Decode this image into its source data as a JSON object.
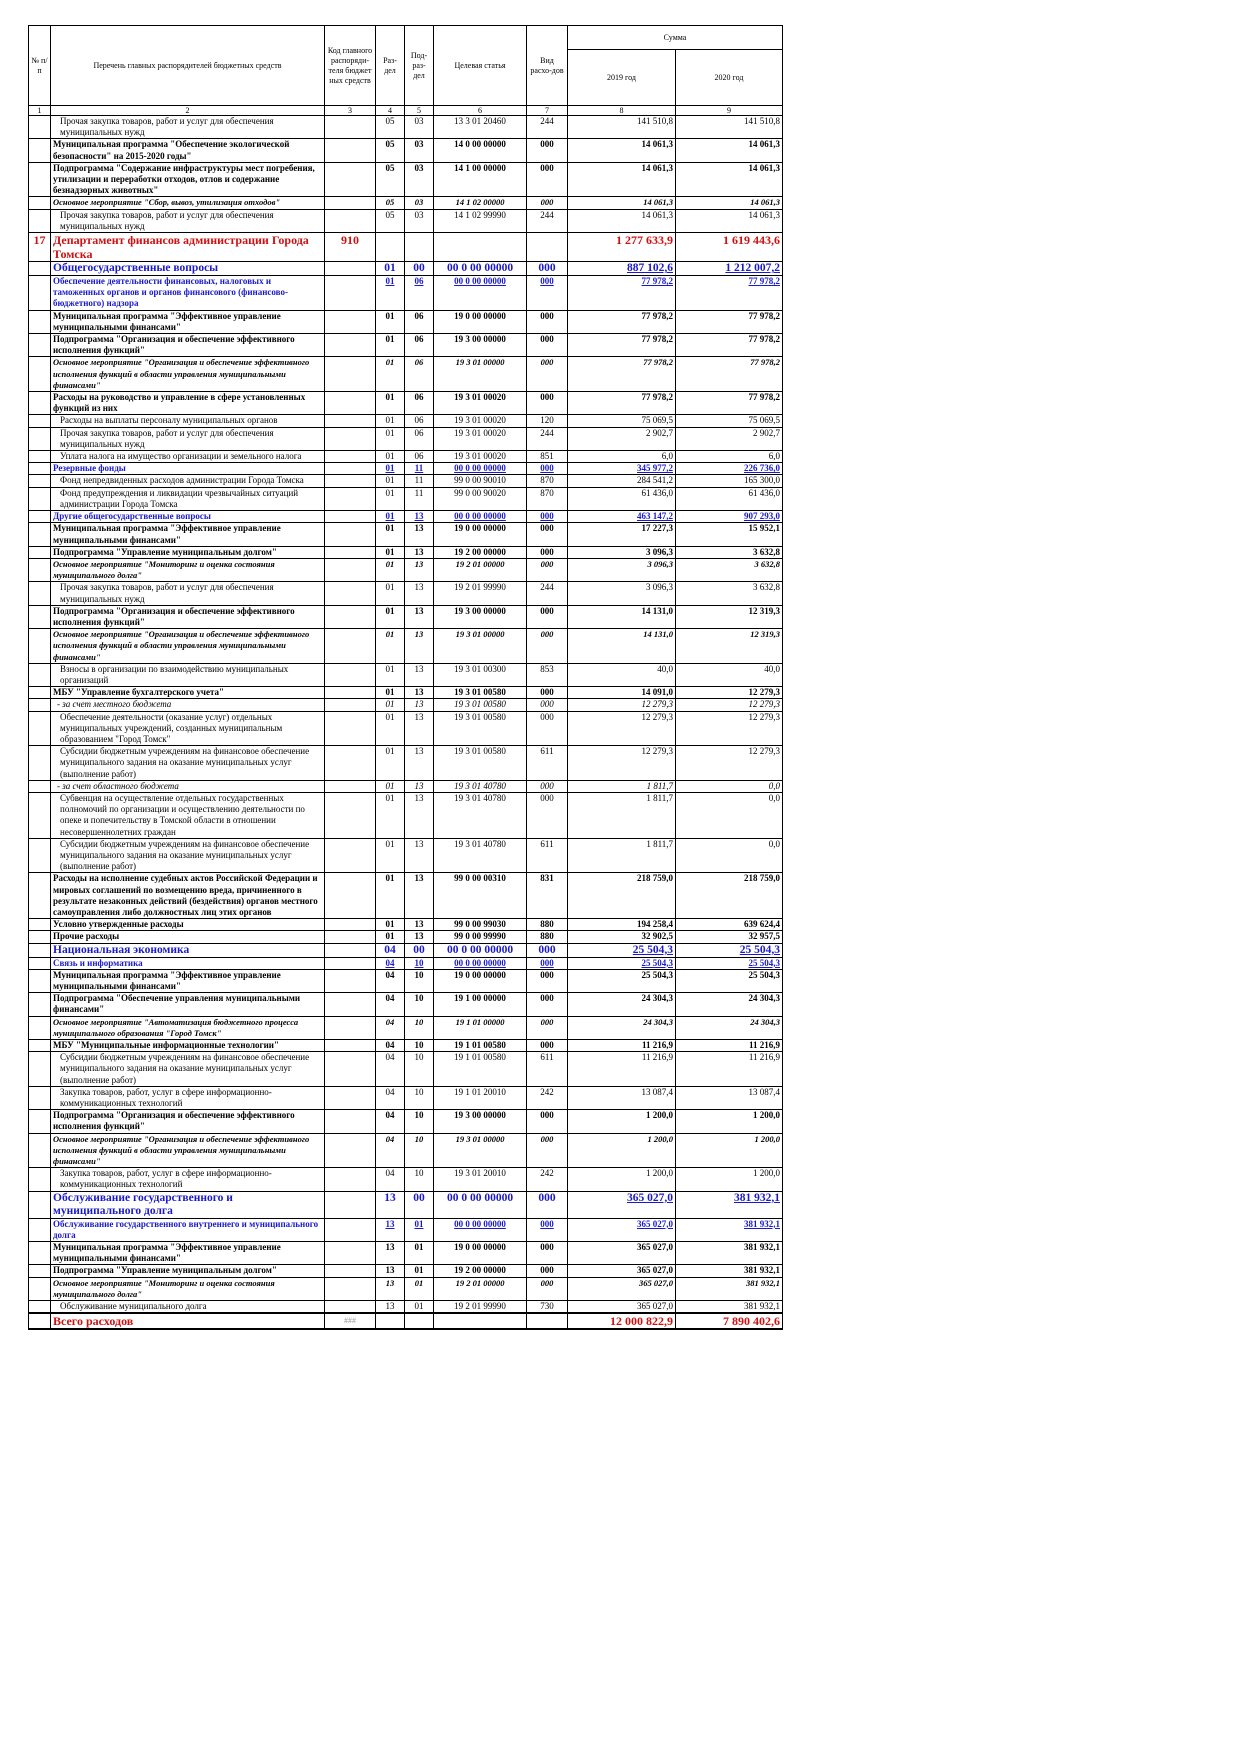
{
  "table": {
    "header": {
      "num": "№ п/п",
      "name": "Перечень главных распорядителей бюджетных средств",
      "code": "Код главного распоряди-теля бюджет ных средств",
      "section": "Раз-дел",
      "subsection": "Под-раз-дел",
      "target": "Целевая статья",
      "type": "Вид расхо-дов",
      "sum": "Сумма",
      "years": [
        "2019 год",
        "2020 год"
      ],
      "numbers": [
        "1",
        "2",
        "3",
        "4",
        "5",
        "6",
        "7",
        "8",
        "9"
      ]
    },
    "rows": [
      [
        null,
        "Прочая закупка товаров, работ и услуг для обеспечения муниципальных нужд",
        null,
        "05",
        "03",
        "13 3 01 20460",
        "244",
        "141 510,8",
        "141 510,8"
      ],
      [
        null,
        "Муниципальная программа \"Обеспечение экологической безопасности\" на 2015-2020 годы\"",
        null,
        "05",
        "03",
        "14 0 00 00000",
        "000",
        "14 061,3",
        "14 061,3"
      ],
      [
        null,
        "Подпрограмма \"Содержание инфраструктуры мест погребения, утилизации и переработки отходов, отлов и содержание безнадзорных животных\"",
        null,
        "05",
        "03",
        "14 1 00 00000",
        "000",
        "14 061,3",
        "14 061,3"
      ],
      [
        null,
        "Основное мероприятие \"Сбор, вывоз, утилизация отходов\"",
        null,
        "05",
        "03",
        "14 1 02 00000",
        "000",
        "14 061,3",
        "14 061,3"
      ],
      [
        null,
        "Прочая закупка товаров, работ и услуг для обеспечения муниципальных нужд",
        null,
        "05",
        "03",
        "14 1 02 99990",
        "244",
        "14 061,3",
        "14 061,3"
      ],
      [
        "17",
        "Департамент финансов администрации Города Томска",
        "910",
        null,
        null,
        null,
        null,
        "1 277 633,9",
        "1 619 443,6"
      ],
      [
        null,
        "Общегосударственные вопросы",
        null,
        "01",
        "00",
        "00 0 00 00000",
        "000",
        "887 102,6",
        "1 212 007,2"
      ],
      [
        null,
        "Обеспечение деятельности финансовых, налоговых и таможенных органов и органов финансового (финансово-бюджетного) надзора",
        null,
        "01",
        "06",
        "00 0 00 00000",
        "000",
        "77 978,2",
        "77 978,2"
      ],
      [
        null,
        "Муниципальная программа \"Эффективное управление муниципальными финансами\"",
        null,
        "01",
        "06",
        "19 0 00 00000",
        "000",
        "77 978,2",
        "77 978,2"
      ],
      [
        null,
        "Подпрограмма \"Организация и обеспечение эффективного исполнения функций\"",
        null,
        "01",
        "06",
        "19 3 00 00000",
        "000",
        "77 978,2",
        "77 978,2"
      ],
      [
        null,
        "Основное мероприятие \"Организация и обеспечение эффективного исполнения функций в области управления муниципальными финансами\"",
        null,
        "01",
        "06",
        "19 3 01 00000",
        "000",
        "77 978,2",
        "77 978,2"
      ],
      [
        null,
        "Расходы на руководство и управление в сфере установленных функций из них",
        null,
        "01",
        "06",
        "19 3 01 00020",
        "000",
        "77 978,2",
        "77 978,2"
      ],
      [
        null,
        "Расходы на выплаты персоналу муниципальных органов",
        null,
        "01",
        "06",
        "19 3 01 00020",
        "120",
        "75 069,5",
        "75 069,5"
      ],
      [
        null,
        "Прочая закупка товаров, работ и услуг для обеспечения муниципальных нужд",
        null,
        "01",
        "06",
        "19 3 01 00020",
        "244",
        "2 902,7",
        "2 902,7"
      ],
      [
        null,
        "Уплата налога на имущество организации и земельного налога",
        null,
        "01",
        "06",
        "19 3 01 00020",
        "851",
        "6,0",
        "6,0"
      ],
      [
        null,
        "Резервные фонды",
        null,
        "01",
        "11",
        "00 0 00 00000",
        "000",
        "345 977,2",
        "226 736,0"
      ],
      [
        null,
        "Фонд непредвиденных расходов администрации Города Томска",
        null,
        "01",
        "11",
        "99 0 00 90010",
        "870",
        "284 541,2",
        "165 300,0"
      ],
      [
        null,
        "Фонд предупреждения и ликвидации чрезвычайных ситуаций администрации Города Томска",
        null,
        "01",
        "11",
        "99 0 00 90020",
        "870",
        "61 436,0",
        "61 436,0"
      ],
      [
        null,
        "Другие общегосударственные вопросы",
        null,
        "01",
        "13",
        "00 0 00 00000",
        "000",
        "463 147,2",
        "907 293,0"
      ],
      [
        null,
        "Муниципальная программа \"Эффективное управление муниципальными финансами\"",
        null,
        "01",
        "13",
        "19 0 00 00000",
        "000",
        "17 227,3",
        "15 952,1"
      ],
      [
        null,
        "Подпрограмма \"Управление муниципальным долгом\"",
        null,
        "01",
        "13",
        "19 2 00 00000",
        "000",
        "3 096,3",
        "3 632,8"
      ],
      [
        null,
        "Основное мероприятие \"Мониторинг и оценка состояния муниципального долга\"",
        null,
        "01",
        "13",
        "19 2 01 00000",
        "000",
        "3 096,3",
        "3 632,8"
      ],
      [
        null,
        "Прочая закупка товаров, работ и услуг для обеспечения муниципальных нужд",
        null,
        "01",
        "13",
        "19 2 01 99990",
        "244",
        "3 096,3",
        "3 632,8"
      ],
      [
        null,
        "Подпрограмма \"Организация и обеспечение эффективного исполнения функций\"",
        null,
        "01",
        "13",
        "19 3 00 00000",
        "000",
        "14 131,0",
        "12 319,3"
      ],
      [
        null,
        "Основное мероприятие \"Организация и обеспечение эффективного исполнения функций в области управления муниципальными финансами\"",
        null,
        "01",
        "13",
        "19 3 01 00000",
        "000",
        "14 131,0",
        "12 319,3"
      ],
      [
        null,
        "Взносы в организации по взаимодействию муниципальных организаций",
        null,
        "01",
        "13",
        "19 3 01 00300",
        "853",
        "40,0",
        "40,0"
      ],
      [
        null,
        "МБУ \"Управление бухгалтерского учета\"",
        null,
        "01",
        "13",
        "19 3 01 00580",
        "000",
        "14 091,0",
        "12 279,3"
      ],
      [
        null,
        "- за счет местного бюджета",
        null,
        "01",
        "13",
        "19 3 01 00580",
        "000",
        "12 279,3",
        "12 279,3"
      ],
      [
        null,
        "Обеспечение деятельности (оказание услуг) отдельных муниципальных учреждений, созданных муниципальным образованием \"Город Томск\"",
        null,
        "01",
        "13",
        "19 3 01 00580",
        "000",
        "12 279,3",
        "12 279,3"
      ],
      [
        null,
        "Субсидии бюджетным учреждениям на финансовое обеспечение муниципального задания на оказание муниципальных услуг (выполнение работ)",
        null,
        "01",
        "13",
        "19 3 01 00580",
        "611",
        "12 279,3",
        "12 279,3"
      ],
      [
        null,
        "- за счет областного бюджета",
        null,
        "01",
        "13",
        "19 3 01 40780",
        "000",
        "1 811,7",
        "0,0"
      ],
      [
        null,
        "Субвенция на осуществление отдельных государственных полномочий по организации и осуществлению деятельности по опеке и попечительству в Томской области в отношении несовершеннолетних граждан",
        null,
        "01",
        "13",
        "19 3 01 40780",
        "000",
        "1 811,7",
        "0,0"
      ],
      [
        null,
        "Субсидии бюджетным учреждениям на финансовое обеспечение муниципального задания на оказание муниципальных услуг (выполнение работ)",
        null,
        "01",
        "13",
        "19 3 01 40780",
        "611",
        "1 811,7",
        "0,0"
      ],
      [
        null,
        "Расходы на исполнение судебных актов Российской Федерации и мировых соглашений по возмещению вреда, причиненного в результате незаконных действий (бездействия) органов местного самоуправления либо должностных лиц этих органов",
        null,
        "01",
        "13",
        "99 0 00 00310",
        "831",
        "218 759,0",
        "218 759,0"
      ],
      [
        null,
        "Условно утвержденные расходы",
        null,
        "01",
        "13",
        "99 0 00 99030",
        "880",
        "194 258,4",
        "639 624,4"
      ],
      [
        null,
        "Прочие расходы",
        null,
        "01",
        "13",
        "99 0 00 99990",
        "880",
        "32 902,5",
        "32 957,5"
      ],
      [
        null,
        "Национальная экономика",
        null,
        "04",
        "00",
        "00 0 00 00000",
        "000",
        "25 504,3",
        "25 504,3"
      ],
      [
        null,
        "Связь и информатика",
        null,
        "04",
        "10",
        "00 0 00 00000",
        "000",
        "25 504,3",
        "25 504,3"
      ],
      [
        null,
        "Муниципальная программа \"Эффективное управление муниципальными финансами\"",
        null,
        "04",
        "10",
        "19 0 00 00000",
        "000",
        "25 504,3",
        "25 504,3"
      ],
      [
        null,
        "Подпрограмма \"Обеспечение управления муниципальными финансами\"",
        null,
        "04",
        "10",
        "19 1 00 00000",
        "000",
        "24 304,3",
        "24 304,3"
      ],
      [
        null,
        "Основное мероприятие \"Автоматизация бюджетного процесса муниципального образования \"Город Томск\"",
        null,
        "04",
        "10",
        "19 1 01 00000",
        "000",
        "24 304,3",
        "24 304,3"
      ],
      [
        null,
        "МБУ \"Муниципальные информационные технологии\"",
        null,
        "04",
        "10",
        "19 1 01 00580",
        "000",
        "11 216,9",
        "11 216,9"
      ],
      [
        null,
        "Субсидии бюджетным учреждениям на финансовое обеспечение муниципального задания на оказание муниципальных услуг (выполнение работ)",
        null,
        "04",
        "10",
        "19 1 01 00580",
        "611",
        "11 216,9",
        "11 216,9"
      ],
      [
        null,
        "Закупка товаров, работ, услуг в сфере информационно-коммуникационных технологий",
        null,
        "04",
        "10",
        "19 1 01 20010",
        "242",
        "13 087,4",
        "13 087,4"
      ],
      [
        null,
        "Подпрограмма \"Организация и обеспечение эффективного исполнения функций\"",
        null,
        "04",
        "10",
        "19 3 00 00000",
        "000",
        "1 200,0",
        "1 200,0"
      ],
      [
        null,
        "Основное мероприятие \"Организация и обеспечение эффективного исполнения функций в области управления муниципальными финансами\"",
        null,
        "04",
        "10",
        "19 3 01 00000",
        "000",
        "1 200,0",
        "1 200,0"
      ],
      [
        null,
        "Закупка товаров, работ, услуг в сфере информационно-коммуникационных технологий",
        null,
        "04",
        "10",
        "19 3 01 20010",
        "242",
        "1 200,0",
        "1 200,0"
      ],
      [
        null,
        "Обслуживание государственного и муниципального долга",
        null,
        "13",
        "00",
        "00 0 00 00000",
        "000",
        "365 027,0",
        "381 932,1"
      ],
      [
        null,
        "Обслуживание государственного внутреннего и муниципального долга",
        null,
        "13",
        "01",
        "00 0 00 00000",
        "000",
        "365 027,0",
        "381 932,1"
      ],
      [
        null,
        "Муниципальная программа \"Эффективное управление муниципальными финансами\"",
        null,
        "13",
        "01",
        "19 0 00 00000",
        "000",
        "365 027,0",
        "381 932,1"
      ],
      [
        null,
        "Подпрограмма \"Управление муниципальным долгом\"",
        null,
        "13",
        "01",
        "19 2 00 00000",
        "000",
        "365 027,0",
        "381 932,1"
      ],
      [
        null,
        "Основное мероприятие \"Мониторинг и оценка состояния муниципального долга\"",
        null,
        "13",
        "01",
        "19 2 01 00000",
        "000",
        "365 027,0",
        "381 932,1"
      ],
      [
        null,
        "Обслуживание муниципального долга",
        null,
        "13",
        "01",
        "19 2 01 99990",
        "730",
        "365 027,0",
        "381 932,1"
      ],
      [
        null,
        "Всего расходов",
        "###",
        null,
        null,
        null,
        null,
        "12 000 822,9",
        "7 890 402,6"
      ]
    ]
  }
}
